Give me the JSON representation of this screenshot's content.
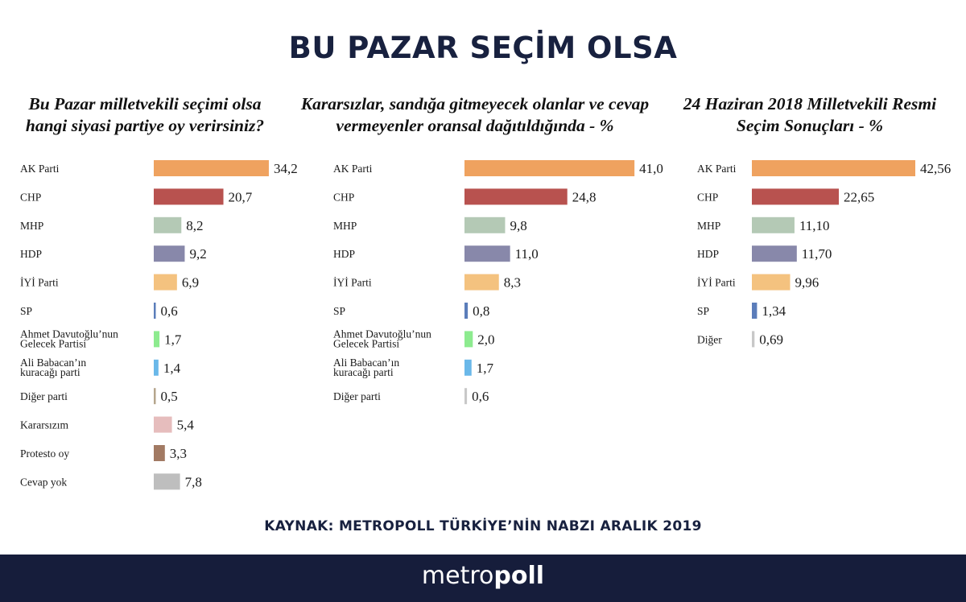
{
  "title": "BU PAZAR SEÇİM OLSA",
  "source": "KAYNAK: METROPOLL TÜRKİYE’NİN NABZI ARALIK 2019",
  "brand": {
    "light": "metro",
    "bold": "poll"
  },
  "colors": {
    "ak": "#EFA25F",
    "chp": "#B8524F",
    "mhp": "#B4C9B5",
    "hdp": "#8888AA",
    "iyi": "#F4C27F",
    "sp": "#5B7DBA",
    "davutoglu": "#8DEB8F",
    "babacan": "#6AB8E9",
    "diger": "#B5A58C",
    "kararsiz": "#E6BDBD",
    "protesto": "#A27A63",
    "cevapyok": "#BEBEBE",
    "diger_light": "#C8C8C8",
    "title": "#18213f",
    "footer": "#161d3b"
  },
  "chart_data": [
    {
      "type": "bar",
      "orientation": "horizontal",
      "title": "Bu Pazar milletvekili seçimi olsa hangi siyasi partiye oy verirsiniz?",
      "categories": [
        "AK Parti",
        "CHP",
        "MHP",
        "HDP",
        "İYİ Parti",
        "SP",
        "Ahmet Davutoğlu’nun\nGelecek Partisi",
        "Ali Babacan’ın\nkuracağı parti",
        "Diğer parti",
        "Kararsızım",
        "Protesto oy",
        "Cevap yok"
      ],
      "values": [
        34.2,
        20.7,
        8.2,
        9.2,
        6.9,
        0.6,
        1.7,
        1.4,
        0.5,
        5.4,
        3.3,
        7.8
      ],
      "value_labels": [
        "34,2",
        "20,7",
        "8,2",
        "9,2",
        "6,9",
        "0,6",
        "1,7",
        "1,4",
        "0,5",
        "5,4",
        "3,3",
        "7,8"
      ],
      "color_keys": [
        "ak",
        "chp",
        "mhp",
        "hdp",
        "iyi",
        "sp",
        "davutoglu",
        "babacan",
        "diger",
        "kararsiz",
        "protesto",
        "cevapyok"
      ]
    },
    {
      "type": "bar",
      "orientation": "horizontal",
      "title": "Kararsızlar, sandığa gitmeyecek olanlar ve cevap vermeyenler oransal dağıtıldığında - %",
      "categories": [
        "AK Parti",
        "CHP",
        "MHP",
        "HDP",
        "İYİ Parti",
        "SP",
        "Ahmet Davutoğlu’nun\nGelecek Partisi",
        "Ali Babacan’ın\nkuracağı parti",
        "Diğer parti"
      ],
      "values": [
        41.0,
        24.8,
        9.8,
        11.0,
        8.3,
        0.8,
        2.0,
        1.7,
        0.6
      ],
      "value_labels": [
        "41,0",
        "24,8",
        "9,8",
        "11,0",
        "8,3",
        "0,8",
        "2,0",
        "1,7",
        "0,6"
      ],
      "color_keys": [
        "ak",
        "chp",
        "mhp",
        "hdp",
        "iyi",
        "sp",
        "davutoglu",
        "babacan",
        "diger_light"
      ]
    },
    {
      "type": "bar",
      "orientation": "horizontal",
      "title": "24 Haziran 2018 Milletvekili Resmi Seçim Sonuçları - %",
      "categories": [
        "AK Parti",
        "CHP",
        "MHP",
        "HDP",
        "İYİ Parti",
        "SP",
        "Diğer"
      ],
      "values": [
        42.56,
        22.65,
        11.1,
        11.7,
        9.96,
        1.34,
        0.69
      ],
      "value_labels": [
        "42,56",
        "22,65",
        "11,10",
        "11,70",
        "9,96",
        "1,34",
        "0,69"
      ],
      "color_keys": [
        "ak",
        "chp",
        "mhp",
        "hdp",
        "iyi",
        "sp",
        "diger_light"
      ]
    }
  ]
}
